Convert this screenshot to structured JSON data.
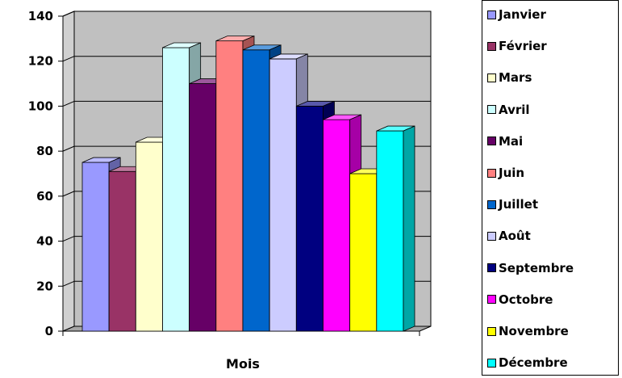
{
  "chart_data": {
    "type": "bar",
    "title": "",
    "xlabel": "Mois",
    "ylabel": "",
    "ylim": [
      0,
      140
    ],
    "yticks": [
      0,
      20,
      40,
      60,
      80,
      100,
      120,
      140
    ],
    "grid": true,
    "legend_position": "right",
    "series": [
      {
        "name": "Janvier",
        "value": 75,
        "color": "#9999ff"
      },
      {
        "name": "Février",
        "value": 71,
        "color": "#993366"
      },
      {
        "name": "Mars",
        "value": 84,
        "color": "#ffffcc"
      },
      {
        "name": "Avril",
        "value": 126,
        "color": "#ccffff"
      },
      {
        "name": "Mai",
        "value": 110,
        "color": "#660066"
      },
      {
        "name": "Juin",
        "value": 129,
        "color": "#ff8080"
      },
      {
        "name": "Juillet",
        "value": 125,
        "color": "#0066cc"
      },
      {
        "name": "Août",
        "value": 121,
        "color": "#ccccff"
      },
      {
        "name": "Septembre",
        "value": 100,
        "color": "#000080"
      },
      {
        "name": "Octobre",
        "value": 94,
        "color": "#ff00ff"
      },
      {
        "name": "Novembre",
        "value": 70,
        "color": "#ffff00"
      },
      {
        "name": "Décembre",
        "value": 89,
        "color": "#00ffff"
      }
    ]
  },
  "colors": {
    "wall": "#c0c0c0",
    "floor": "#a6a6a6",
    "grid": "#000000"
  }
}
